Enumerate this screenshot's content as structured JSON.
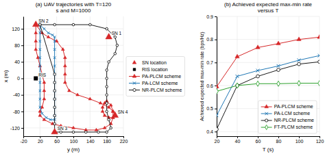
{
  "chart_data": [
    {
      "type": "line",
      "title": "(a) UAV trajectories with T=120\ns and M=1000",
      "xlabel": "y (m)",
      "ylabel": "x (m)",
      "xlim": [
        -20,
        220
      ],
      "ylim": [
        -140,
        150
      ],
      "xticks": [
        -20,
        20,
        60,
        100,
        140,
        180,
        220
      ],
      "yticks": [
        -120,
        -80,
        -40,
        0,
        40,
        80,
        120
      ],
      "grid": true,
      "legend": "center right",
      "series": [
        {
          "name": "SN location",
          "type": "scatter",
          "marker": "triangle",
          "color": "#d62728",
          "x": [
            10,
            185,
            55,
            200
          ],
          "values": [
            130,
            100,
            -130,
            -90
          ]
        },
        {
          "name": "RIS location",
          "type": "scatter",
          "marker": "square",
          "color": "black",
          "x": [
            10
          ],
          "values": [
            0
          ]
        },
        {
          "name": "PA-PLCM scheme",
          "type": "line",
          "marker": "triangle",
          "color": "#d62728",
          "x": [
            10,
            10,
            10,
            10,
            15,
            20,
            25,
            30,
            30,
            30,
            25,
            20,
            20,
            30,
            50,
            70,
            100,
            130,
            155,
            175,
            190,
            195,
            195,
            190,
            180,
            175,
            170,
            170,
            175,
            185,
            195,
            200,
            195,
            185,
            165,
            140,
            110,
            90,
            80,
            80,
            80,
            80,
            75,
            60,
            40,
            25,
            10
          ],
          "values": [
            130,
            110,
            90,
            70,
            50,
            30,
            10,
            -10,
            -30,
            -50,
            -70,
            -80,
            -90,
            -100,
            -110,
            -115,
            -120,
            -125,
            -125,
            -120,
            -110,
            -95,
            -80,
            -65,
            -55,
            -60,
            -70,
            -80,
            -90,
            -95,
            -95,
            -90,
            -80,
            -70,
            -60,
            -50,
            -40,
            -30,
            -10,
            10,
            30,
            50,
            70,
            90,
            100,
            110,
            130
          ]
        },
        {
          "name": "PA-LCM scheme",
          "type": "line",
          "marker": "x",
          "color": "#1f77b4",
          "x": [
            20,
            20,
            20,
            20,
            20,
            20,
            20,
            20,
            20,
            20,
            20,
            25,
            35,
            45,
            55,
            55,
            55,
            55,
            55,
            55,
            55,
            55,
            55,
            55,
            55,
            55,
            50,
            40,
            30,
            20
          ],
          "values": [
            130,
            110,
            90,
            70,
            50,
            30,
            10,
            -10,
            -30,
            -50,
            -70,
            -85,
            -95,
            -100,
            -100,
            -90,
            -70,
            -50,
            -30,
            -10,
            10,
            30,
            50,
            70,
            90,
            100,
            105,
            110,
            120,
            130
          ]
        },
        {
          "name": "NR-PLCM scheme",
          "type": "line",
          "marker": "circle",
          "color": "#1a1a1a",
          "x": [
            20,
            55,
            100,
            140,
            180,
            200,
            205,
            200,
            185,
            180,
            180,
            180,
            180,
            180,
            180,
            185,
            190,
            180,
            160,
            130,
            100,
            70,
            55,
            55,
            55,
            55,
            55,
            55,
            55,
            55,
            20
          ],
          "values": [
            130,
            130,
            130,
            130,
            120,
            100,
            80,
            60,
            40,
            20,
            0,
            -20,
            -40,
            -60,
            -80,
            -100,
            -120,
            -130,
            -130,
            -130,
            -130,
            -130,
            -130,
            -110,
            -90,
            -70,
            -50,
            -30,
            -10,
            10,
            130
          ]
        }
      ],
      "annotations": [
        {
          "text": "SN 2",
          "x": 10,
          "y": 130
        },
        {
          "text": "SN 1",
          "x": 185,
          "y": 100
        },
        {
          "text": "SN 3",
          "x": 55,
          "y": -130
        },
        {
          "text": "SN 4",
          "x": 200,
          "y": -90
        },
        {
          "text": "RIS",
          "x": 10,
          "y": 0
        }
      ]
    },
    {
      "type": "line",
      "title": "(b) Achieved expected max-min rate\nversus T",
      "xlabel": "T (s)",
      "ylabel": "Achieved expected max-min rate (bps/Hz)",
      "xlim": [
        20,
        120
      ],
      "ylim": [
        0.38,
        0.9
      ],
      "xticks": [
        20,
        40,
        60,
        80,
        100,
        120
      ],
      "yticks": [
        0.4,
        0.5,
        0.6,
        0.7,
        0.8,
        0.9
      ],
      "grid": true,
      "legend": "lower right",
      "x": [
        20,
        40,
        60,
        80,
        100,
        120
      ],
      "series": [
        {
          "name": "PA-PLCM scheme",
          "marker": "triangle",
          "color": "#d62728",
          "values": [
            0.595,
            0.725,
            0.765,
            0.782,
            0.8,
            0.81
          ]
        },
        {
          "name": "PA-LCM scheme",
          "marker": "x",
          "color": "#1f77b4",
          "values": [
            0.47,
            0.64,
            0.665,
            0.685,
            0.71,
            0.73
          ]
        },
        {
          "name": "NR-PLCM scheme",
          "marker": "circle",
          "color": "#1a1a1a",
          "values": [
            0.41,
            0.6,
            0.64,
            0.668,
            0.693,
            0.703
          ]
        },
        {
          "name": "FT-PLCM scheme",
          "marker": "diamond",
          "color": "#2ca02c",
          "values": [
            0.575,
            0.6,
            0.608,
            0.608,
            0.61,
            0.61
          ]
        }
      ]
    }
  ]
}
